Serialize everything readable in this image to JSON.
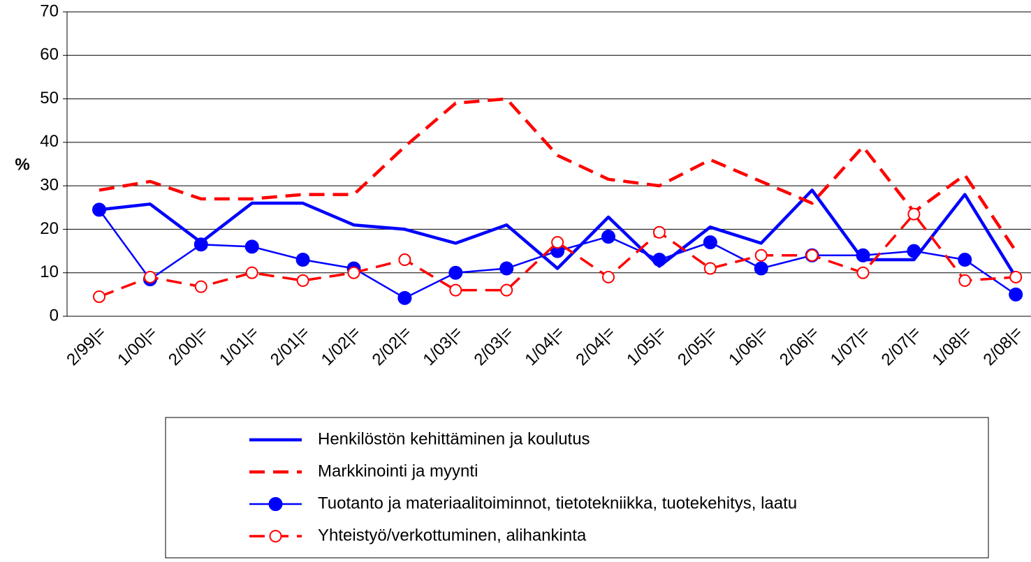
{
  "chart_data": {
    "type": "line",
    "y_label": "%",
    "categories": [
      "2/99|=",
      "1/00|=",
      "2/00|=",
      "1/01|=",
      "2/01|=",
      "1/02|=",
      "2/02|=",
      "1/03|=",
      "2/03|=",
      "1/04|=",
      "2/04|=",
      "1/05|=",
      "2/05|=",
      "1/06|=",
      "2/06|=",
      "1/07|=",
      "2/07|=",
      "1/08|=",
      "2/08|="
    ],
    "ylim": [
      0,
      70
    ],
    "yticks": [
      0,
      10,
      20,
      30,
      40,
      50,
      60,
      70
    ],
    "grid": true,
    "series": [
      {
        "name": "Henkilöstön kehittäminen ja koulutus",
        "color": "#0000ff",
        "dashed": false,
        "marker": null,
        "values": [
          24.5,
          25.8,
          17,
          26,
          26,
          21,
          20,
          16.8,
          21,
          11,
          22.8,
          11.5,
          20.5,
          16.8,
          29,
          13,
          13,
          28,
          9
        ]
      },
      {
        "name": "Markkinointi ja myynti",
        "color": "#ff0000",
        "dashed": true,
        "marker": null,
        "values": [
          29,
          31,
          27,
          27,
          28,
          28,
          39,
          49,
          50,
          37,
          31.5,
          30,
          36,
          31,
          26,
          39,
          24,
          32.5,
          15
        ]
      },
      {
        "name": "Tuotanto ja materiaalitoiminnot, tietotekniikka, tuotekehitys, laatu",
        "color": "#0000ff",
        "dashed": false,
        "marker": "filled",
        "values": [
          24.5,
          8.5,
          16.5,
          16,
          13,
          11,
          4.2,
          10,
          11,
          15,
          18.3,
          13,
          17,
          11,
          14,
          14,
          15,
          13,
          5
        ]
      },
      {
        "name": "Yhteistyö/verkottuminen, alihankinta",
        "color": "#ff0000",
        "dashed": true,
        "marker": "open",
        "values": [
          4.5,
          9,
          6.8,
          10,
          8.2,
          10,
          13,
          6,
          6,
          17,
          9,
          19.3,
          11,
          14,
          14,
          10,
          23.5,
          8.2,
          9
        ]
      }
    ]
  }
}
